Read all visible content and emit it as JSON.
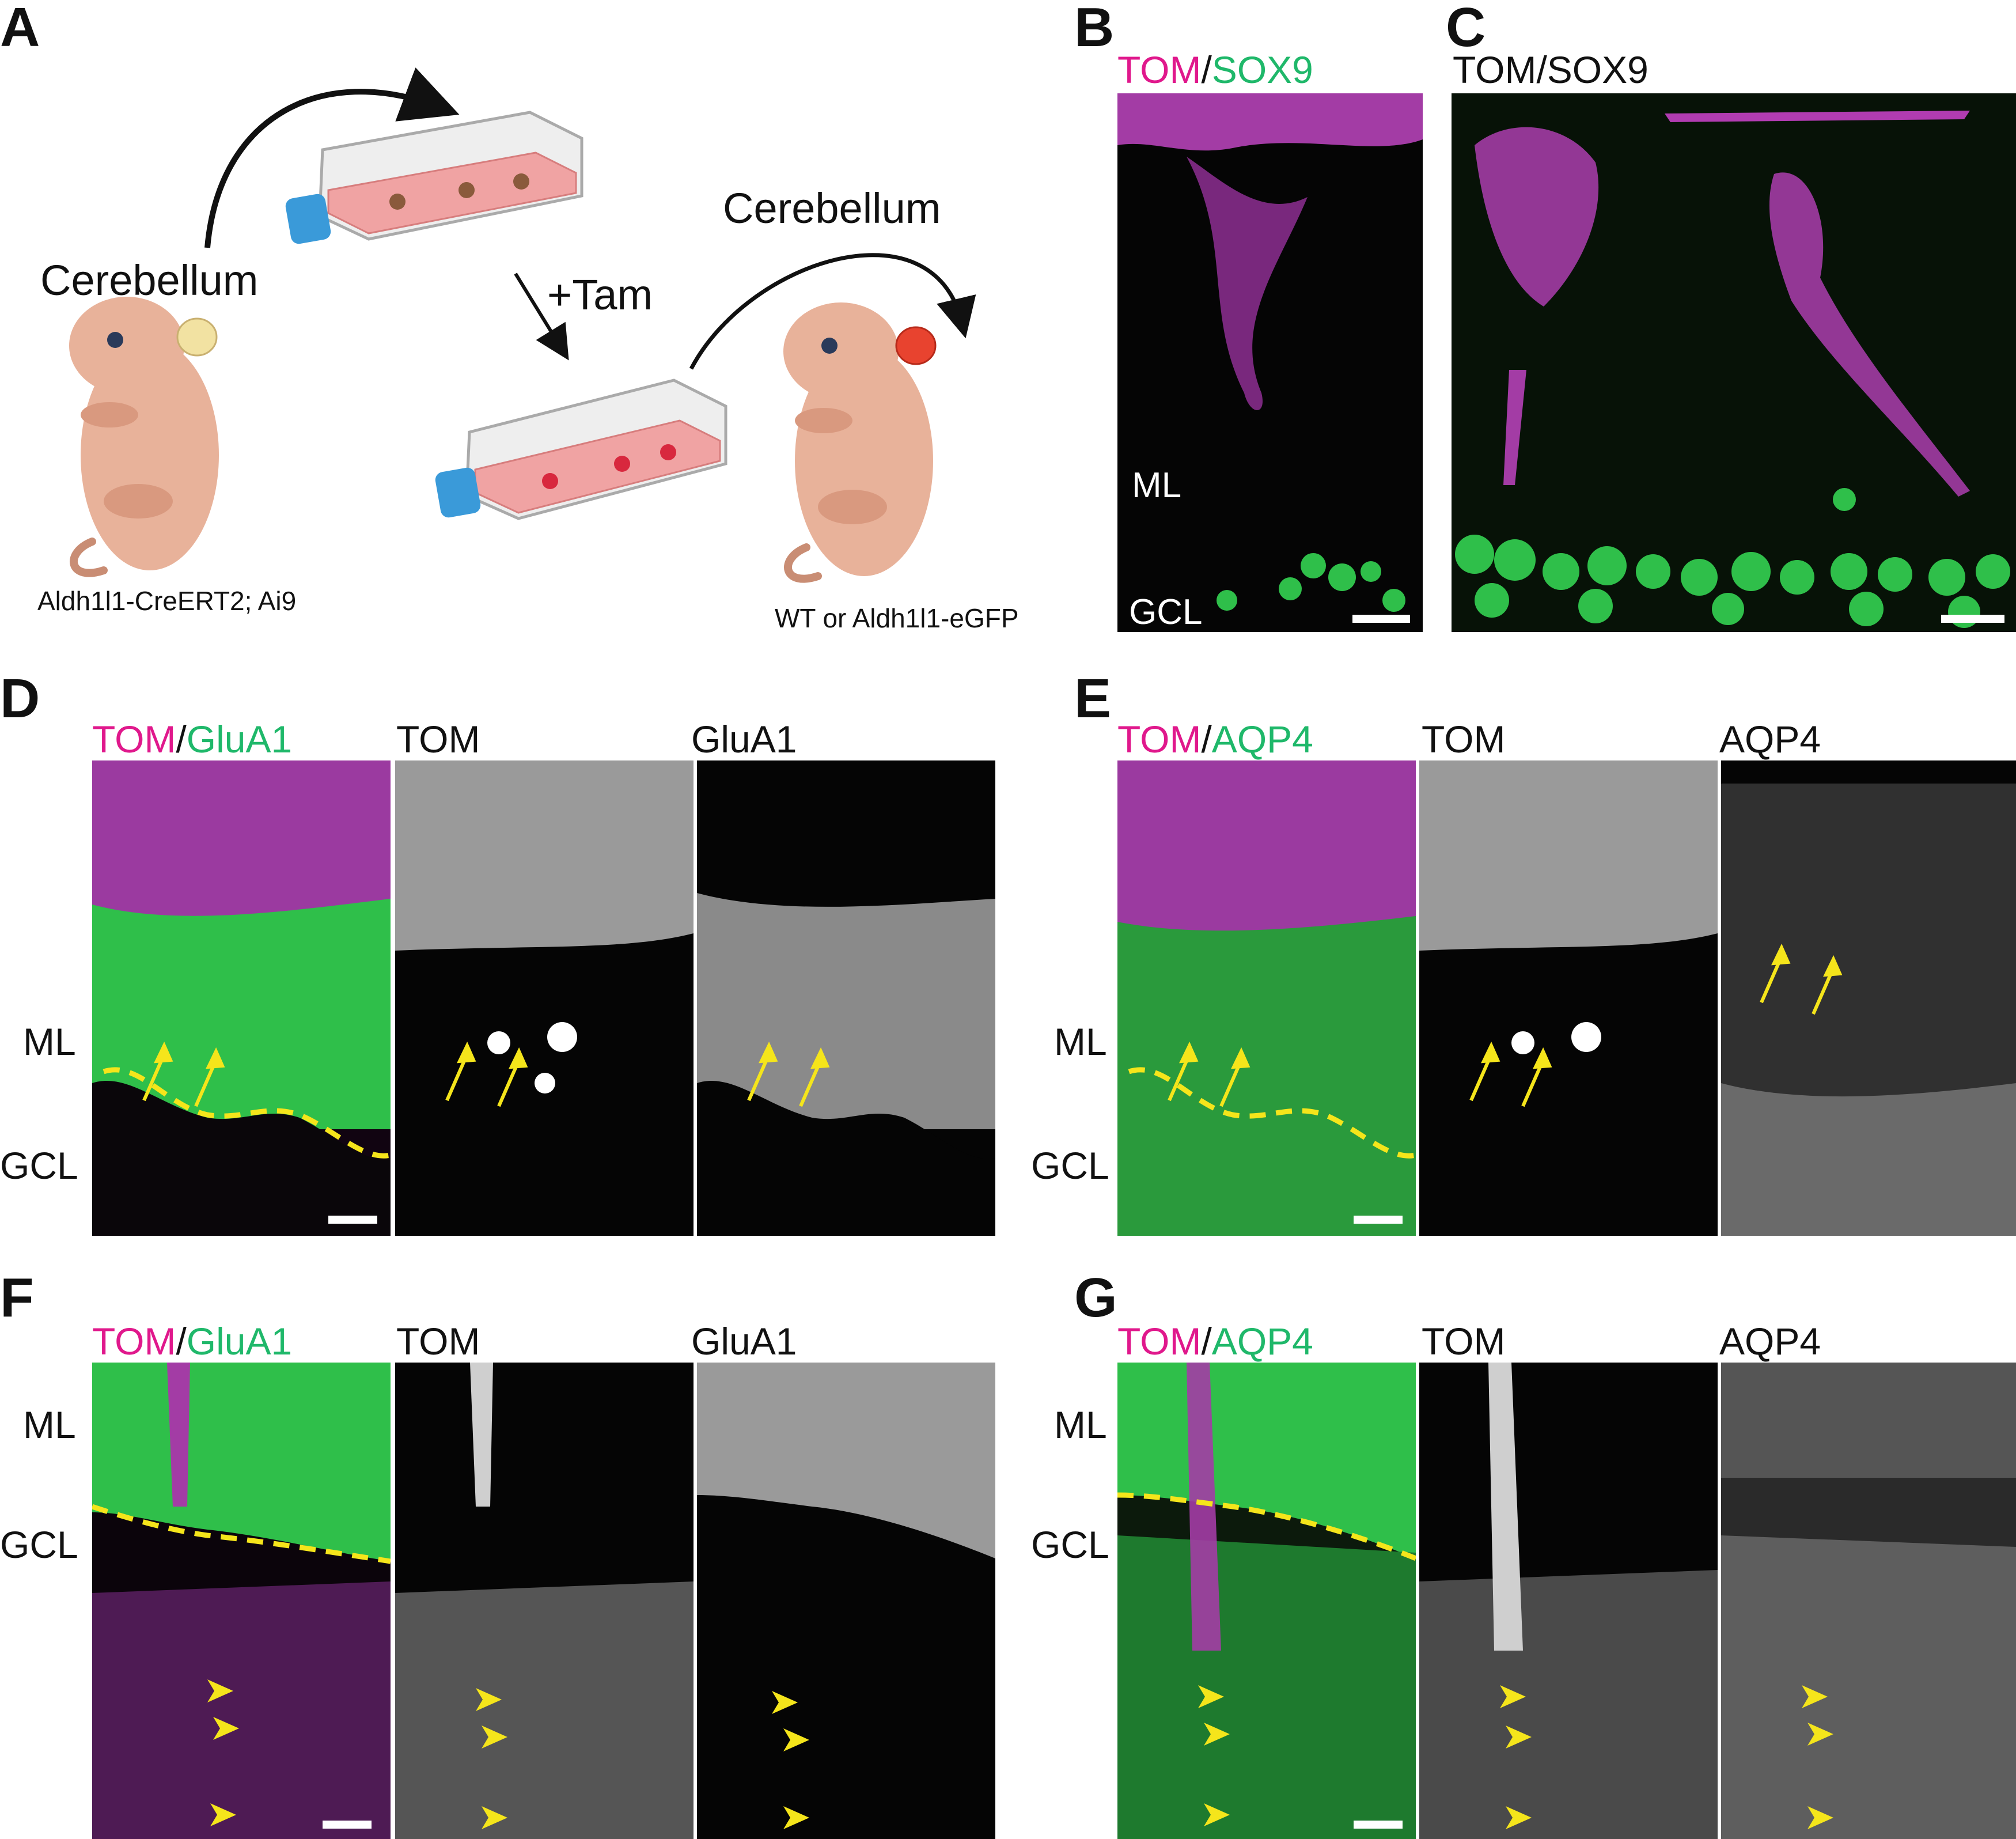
{
  "panels": {
    "A": {
      "letter": "A",
      "left_title": "Cerebellum",
      "right_title": "Cerebellum",
      "treatment": "+Tam",
      "left_caption": "Aldh1l1-CreERT2; Ai9",
      "right_caption": "WT or Aldh1l1-eGFP",
      "colors": {
        "pup": "#e8b29a",
        "pup_dark": "#c98d74",
        "cerebellum_left": "#f2e2a2",
        "cerebellum_right": "#e8432f",
        "flask_cap": "#3a9ad9",
        "medium": "#f0a3a3"
      }
    },
    "B": {
      "letter": "B",
      "stain_a": "TOM",
      "sep": "/",
      "stain_b": "SOX9",
      "region_ml": "ML",
      "region_gcl": "GCL"
    },
    "C": {
      "letter": "C",
      "title": "TOM/SOX9"
    },
    "D": {
      "letter": "D",
      "merge_a": "TOM",
      "sep": "/",
      "merge_b": "GluA1",
      "ch1": "TOM",
      "ch2": "GluA1",
      "region_ml": "ML",
      "region_gcl": "GCL"
    },
    "E": {
      "letter": "E",
      "merge_a": "TOM",
      "sep": "/",
      "merge_b": "AQP4",
      "ch1": "TOM",
      "ch2": "AQP4",
      "region_ml": "ML",
      "region_gcl": "GCL"
    },
    "F": {
      "letter": "F",
      "merge_a": "TOM",
      "sep": "/",
      "merge_b": "GluA1",
      "ch1": "TOM",
      "ch2": "GluA1",
      "region_ml": "ML",
      "region_gcl": "GCL"
    },
    "G": {
      "letter": "G",
      "merge_a": "TOM",
      "sep": "/",
      "merge_b": "AQP4",
      "ch1": "TOM",
      "ch2": "AQP4",
      "region_ml": "ML",
      "region_gcl": "GCL"
    }
  },
  "colors": {
    "magenta": "#e0188c",
    "green": "#1fb86a",
    "annotation_yellow": "#f5e51b",
    "tissue_magenta": "#b13cb1",
    "tissue_green": "#2fbf4a"
  }
}
